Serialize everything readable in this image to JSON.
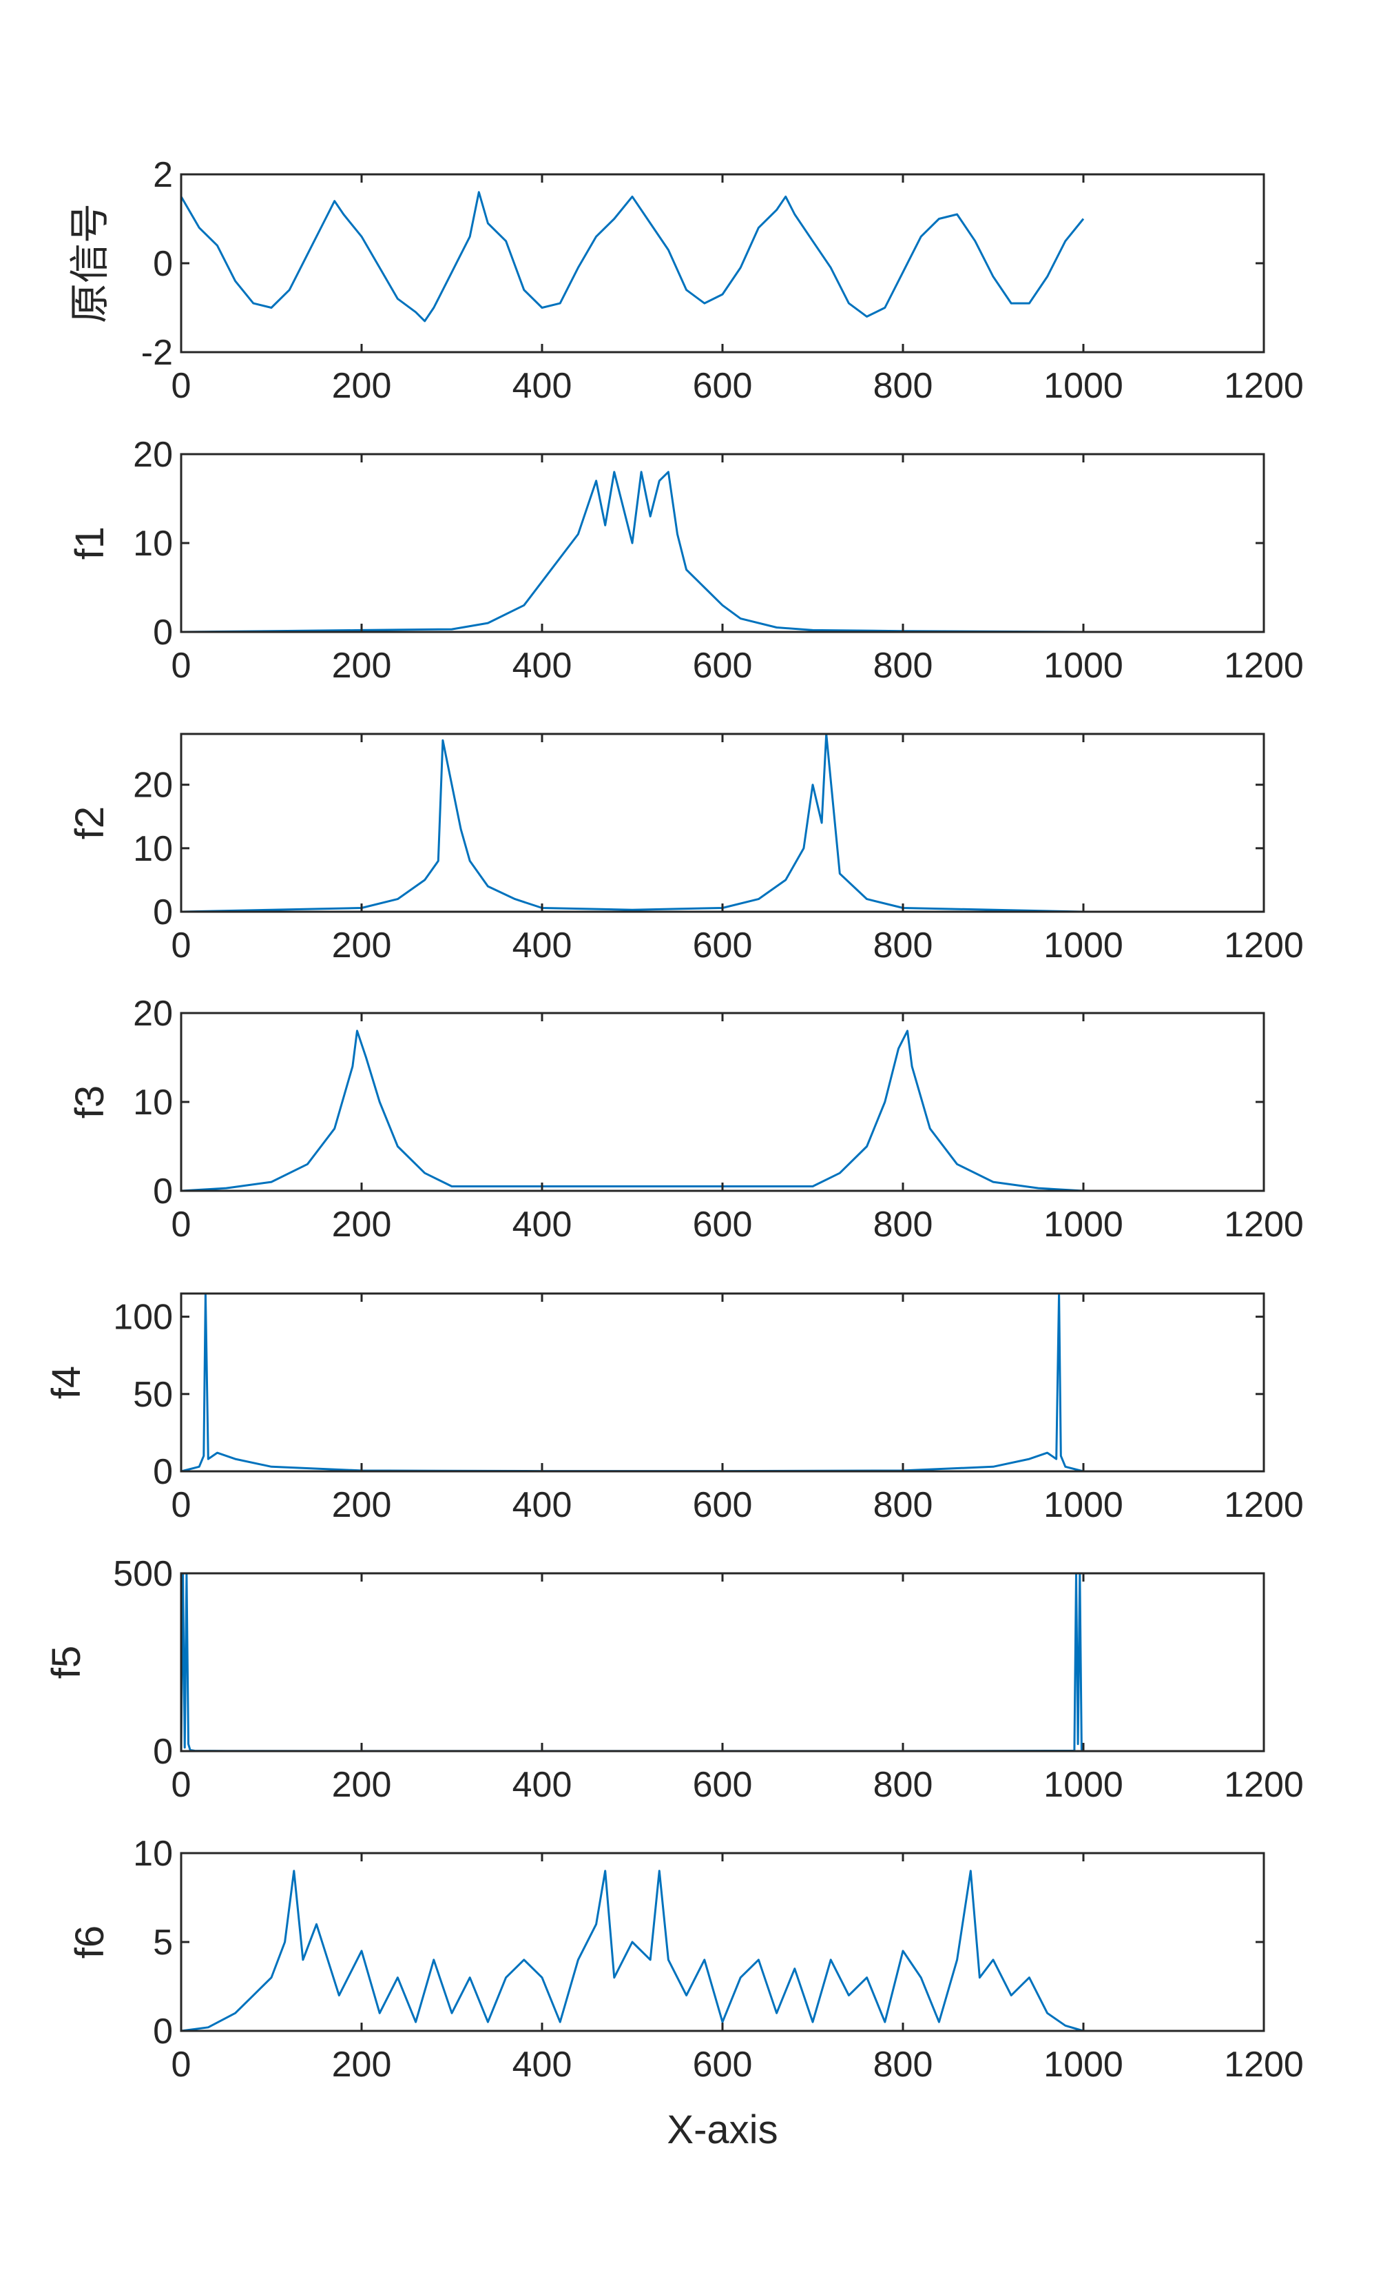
{
  "chart_data": {
    "type": "line",
    "xlabel": "X-axis",
    "series_color": "#0072BD",
    "subplots": [
      {
        "ylabel": "原信号",
        "xlim": [
          0,
          1200
        ],
        "ylim": [
          -2,
          2
        ],
        "xticks": [
          0,
          200,
          400,
          600,
          800,
          1000,
          1200
        ],
        "xtick_labels": [
          "0",
          "200",
          "400",
          "600",
          "800",
          "1000",
          "1200"
        ],
        "yticks": [
          -2,
          0,
          2
        ],
        "ytick_labels": [
          "-2",
          "0",
          "2"
        ],
        "x": [
          0,
          20,
          40,
          60,
          80,
          100,
          120,
          140,
          160,
          170,
          180,
          200,
          220,
          240,
          260,
          270,
          280,
          300,
          320,
          330,
          340,
          360,
          380,
          400,
          420,
          440,
          460,
          480,
          500,
          520,
          540,
          560,
          580,
          600,
          620,
          640,
          660,
          670,
          680,
          700,
          720,
          740,
          760,
          780,
          800,
          820,
          840,
          860,
          880,
          900,
          920,
          940,
          960,
          980,
          1000
        ],
        "y": [
          1.5,
          0.8,
          0.4,
          -0.4,
          -0.9,
          -1.0,
          -0.6,
          0.2,
          1.0,
          1.4,
          1.1,
          0.6,
          -0.1,
          -0.8,
          -1.1,
          -1.3,
          -1.0,
          -0.2,
          0.6,
          1.6,
          0.9,
          0.5,
          -0.6,
          -1.0,
          -0.9,
          -0.1,
          0.6,
          1.0,
          1.5,
          0.9,
          0.3,
          -0.6,
          -0.9,
          -0.7,
          -0.1,
          0.8,
          1.2,
          1.5,
          1.1,
          0.5,
          -0.1,
          -0.9,
          -1.2,
          -1.0,
          -0.2,
          0.6,
          1.0,
          1.1,
          0.5,
          -0.3,
          -0.9,
          -0.9,
          -0.3,
          0.5,
          1.0
        ]
      },
      {
        "ylabel": "f1",
        "xlim": [
          0,
          1200
        ],
        "ylim": [
          0,
          20
        ],
        "xticks": [
          0,
          200,
          400,
          600,
          800,
          1000,
          1200
        ],
        "xtick_labels": [
          "0",
          "200",
          "400",
          "600",
          "800",
          "1000",
          "1200"
        ],
        "yticks": [
          0,
          10,
          20
        ],
        "ytick_labels": [
          "0",
          "10",
          "20"
        ],
        "x": [
          0,
          100,
          200,
          300,
          340,
          380,
          410,
          440,
          460,
          470,
          480,
          490,
          500,
          510,
          520,
          530,
          540,
          550,
          560,
          580,
          600,
          620,
          660,
          700,
          800,
          1000
        ],
        "y": [
          0,
          0.1,
          0.2,
          0.3,
          1,
          3,
          7,
          11,
          17,
          12,
          18,
          14,
          10,
          18,
          13,
          17,
          18,
          11,
          7,
          5,
          3,
          1.5,
          0.5,
          0.2,
          0.1,
          0
        ]
      },
      {
        "ylabel": "f2",
        "xlim": [
          0,
          1200
        ],
        "ylim": [
          0,
          28
        ],
        "xticks": [
          0,
          200,
          400,
          600,
          800,
          1000,
          1200
        ],
        "xtick_labels": [
          "0",
          "200",
          "400",
          "600",
          "800",
          "1000",
          "1200"
        ],
        "yticks": [
          0,
          10,
          20
        ],
        "ytick_labels": [
          "0",
          "10",
          "20"
        ],
        "x": [
          0,
          100,
          200,
          240,
          270,
          285,
          290,
          300,
          310,
          320,
          340,
          370,
          400,
          500,
          600,
          640,
          670,
          690,
          700,
          710,
          715,
          730,
          760,
          800,
          1000
        ],
        "y": [
          0,
          0.3,
          0.6,
          2,
          5,
          8,
          27,
          20,
          13,
          8,
          4,
          2,
          0.6,
          0.3,
          0.6,
          2,
          5,
          10,
          20,
          14,
          28,
          6,
          2,
          0.6,
          0
        ]
      },
      {
        "ylabel": "f3",
        "xlim": [
          0,
          1200
        ],
        "ylim": [
          0,
          20
        ],
        "xticks": [
          0,
          200,
          400,
          600,
          800,
          1000,
          1200
        ],
        "xtick_labels": [
          "0",
          "200",
          "400",
          "600",
          "800",
          "1000",
          "1200"
        ],
        "yticks": [
          0,
          10,
          20
        ],
        "ytick_labels": [
          "0",
          "10",
          "20"
        ],
        "x": [
          0,
          50,
          100,
          140,
          170,
          190,
          195,
          205,
          220,
          240,
          270,
          300,
          400,
          500,
          600,
          700,
          730,
          760,
          780,
          795,
          805,
          810,
          830,
          860,
          900,
          950,
          1000
        ],
        "y": [
          0,
          0.3,
          1,
          3,
          7,
          14,
          18,
          15,
          10,
          5,
          2,
          0.5,
          0.5,
          0.5,
          0.5,
          0.5,
          2,
          5,
          10,
          16,
          18,
          14,
          7,
          3,
          1,
          0.3,
          0
        ]
      },
      {
        "ylabel": "f4",
        "xlim": [
          0,
          1200
        ],
        "ylim": [
          0,
          115
        ],
        "xticks": [
          0,
          200,
          400,
          600,
          800,
          1000,
          1200
        ],
        "xtick_labels": [
          "0",
          "200",
          "400",
          "600",
          "800",
          "1000",
          "1200"
        ],
        "yticks": [
          0,
          50,
          100
        ],
        "ytick_labels": [
          "0",
          "50",
          "100"
        ],
        "x": [
          0,
          20,
          25,
          27,
          30,
          40,
          60,
          100,
          200,
          400,
          600,
          800,
          900,
          940,
          960,
          970,
          973,
          975,
          980,
          1000
        ],
        "y": [
          0,
          3,
          10,
          115,
          8,
          12,
          8,
          3,
          0.5,
          0.2,
          0.2,
          0.5,
          3,
          8,
          12,
          8,
          115,
          10,
          3,
          0
        ]
      },
      {
        "ylabel": "f5",
        "xlim": [
          0,
          1200
        ],
        "ylim": [
          0,
          500
        ],
        "xticks": [
          0,
          200,
          400,
          600,
          800,
          1000,
          1200
        ],
        "xtick_labels": [
          "0",
          "200",
          "400",
          "600",
          "800",
          "1000",
          "1200"
        ],
        "yticks": [
          0,
          500
        ],
        "ytick_labels": [
          "0",
          "500"
        ],
        "x": [
          0,
          2,
          4,
          6,
          8,
          10,
          15,
          50,
          200,
          500,
          800,
          990,
          992,
          994,
          996,
          998,
          1000
        ],
        "y": [
          0,
          500,
          10,
          500,
          20,
          3,
          1,
          0.5,
          0.2,
          0.2,
          0.2,
          1,
          500,
          20,
          500,
          5,
          0
        ]
      },
      {
        "ylabel": "f6",
        "xlim": [
          0,
          1200
        ],
        "ylim": [
          0,
          10
        ],
        "xticks": [
          0,
          200,
          400,
          600,
          800,
          1000,
          1200
        ],
        "xtick_labels": [
          "0",
          "200",
          "400",
          "600",
          "800",
          "1000",
          "1200"
        ],
        "yticks": [
          0,
          5,
          10
        ],
        "ytick_labels": [
          "0",
          "5",
          "10"
        ],
        "x": [
          0,
          30,
          60,
          80,
          100,
          115,
          125,
          135,
          150,
          175,
          200,
          220,
          240,
          260,
          280,
          300,
          320,
          340,
          360,
          380,
          400,
          420,
          440,
          460,
          470,
          480,
          500,
          520,
          530,
          540,
          560,
          580,
          600,
          620,
          640,
          660,
          680,
          700,
          720,
          740,
          760,
          780,
          800,
          820,
          840,
          860,
          875,
          885,
          900,
          920,
          940,
          960,
          980,
          1000
        ],
        "y": [
          0,
          0.2,
          1,
          2,
          3,
          5,
          9,
          4,
          6,
          2,
          4.5,
          1,
          3,
          0.5,
          4,
          1,
          3,
          0.5,
          3,
          4,
          3,
          0.5,
          4,
          6,
          9,
          3,
          5,
          4,
          9,
          4,
          2,
          4,
          0.5,
          3,
          4,
          1,
          3.5,
          0.5,
          4,
          2,
          3,
          0.5,
          4.5,
          3,
          0.5,
          4,
          9,
          3,
          4,
          2,
          3,
          1,
          0.3,
          0
        ]
      }
    ]
  }
}
